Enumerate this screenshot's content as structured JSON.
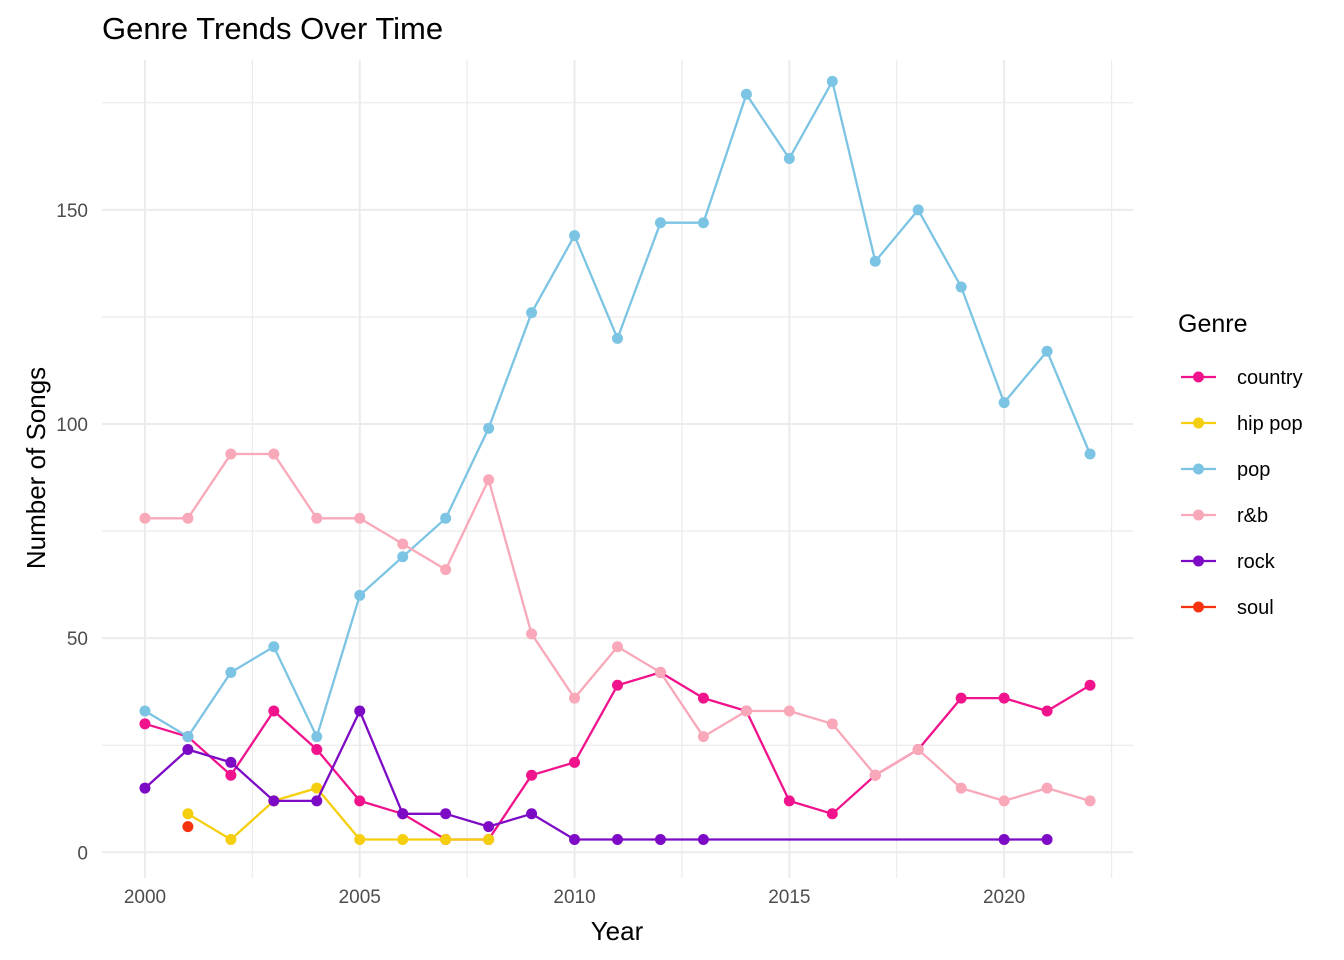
{
  "chart_data": {
    "type": "line",
    "title": "Genre Trends Over Time",
    "xlabel": "Year",
    "ylabel": "Number of Songs",
    "xlim": [
      1999,
      2023
    ],
    "ylim": [
      -6,
      185
    ],
    "x_ticks": [
      2000,
      2005,
      2010,
      2015,
      2020
    ],
    "y_ticks": [
      0,
      50,
      100,
      150
    ],
    "grid": true,
    "legend": {
      "title": "Genre",
      "position": "right"
    },
    "series": [
      {
        "name": "country",
        "color": "#F0138C",
        "points": [
          [
            2000,
            30
          ],
          [
            2001,
            27
          ],
          [
            2002,
            18
          ],
          [
            2003,
            33
          ],
          [
            2004,
            24
          ],
          [
            2005,
            12
          ],
          [
            2006,
            9
          ],
          [
            2007,
            3
          ],
          [
            2008,
            3
          ],
          [
            2009,
            18
          ],
          [
            2010,
            21
          ],
          [
            2011,
            39
          ],
          [
            2012,
            42
          ],
          [
            2013,
            36
          ],
          [
            2014,
            33
          ],
          [
            2015,
            12
          ],
          [
            2016,
            9
          ],
          [
            2017,
            18
          ],
          [
            2018,
            24
          ],
          [
            2019,
            36
          ],
          [
            2020,
            36
          ],
          [
            2021,
            33
          ],
          [
            2022,
            39
          ]
        ]
      },
      {
        "name": "hip pop",
        "color": "#F5CE0E",
        "points": [
          [
            2001,
            9
          ],
          [
            2002,
            3
          ],
          [
            2003,
            12
          ],
          [
            2004,
            15
          ],
          [
            2005,
            3
          ],
          [
            2006,
            3
          ],
          [
            2007,
            3
          ],
          [
            2008,
            3
          ]
        ]
      },
      {
        "name": "pop",
        "color": "#7CC4E3",
        "points": [
          [
            2000,
            33
          ],
          [
            2001,
            27
          ],
          [
            2002,
            42
          ],
          [
            2003,
            48
          ],
          [
            2004,
            27
          ],
          [
            2005,
            60
          ],
          [
            2006,
            69
          ],
          [
            2007,
            78
          ],
          [
            2008,
            99
          ],
          [
            2009,
            126
          ],
          [
            2010,
            144
          ],
          [
            2011,
            120
          ],
          [
            2012,
            147
          ],
          [
            2013,
            147
          ],
          [
            2014,
            177
          ],
          [
            2015,
            162
          ],
          [
            2016,
            180
          ],
          [
            2017,
            138
          ],
          [
            2018,
            150
          ],
          [
            2019,
            132
          ],
          [
            2020,
            105
          ],
          [
            2021,
            117
          ],
          [
            2022,
            93
          ]
        ]
      },
      {
        "name": "r&b",
        "color": "#F8A8B8",
        "points": [
          [
            2000,
            78
          ],
          [
            2001,
            78
          ],
          [
            2002,
            93
          ],
          [
            2003,
            93
          ],
          [
            2004,
            78
          ],
          [
            2005,
            78
          ],
          [
            2006,
            72
          ],
          [
            2007,
            66
          ],
          [
            2008,
            87
          ],
          [
            2009,
            51
          ],
          [
            2010,
            36
          ],
          [
            2011,
            48
          ],
          [
            2012,
            42
          ],
          [
            2013,
            27
          ],
          [
            2014,
            33
          ],
          [
            2015,
            33
          ],
          [
            2016,
            30
          ],
          [
            2017,
            18
          ],
          [
            2018,
            24
          ],
          [
            2019,
            15
          ],
          [
            2020,
            12
          ],
          [
            2021,
            15
          ],
          [
            2022,
            12
          ]
        ]
      },
      {
        "name": "rock",
        "color": "#7D0BC5",
        "points": [
          [
            2000,
            15
          ],
          [
            2001,
            24
          ],
          [
            2002,
            21
          ],
          [
            2003,
            12
          ],
          [
            2004,
            12
          ],
          [
            2005,
            33
          ],
          [
            2006,
            9
          ],
          [
            2007,
            9
          ],
          [
            2008,
            6
          ],
          [
            2009,
            9
          ],
          [
            2010,
            3
          ],
          [
            2011,
            3
          ],
          [
            2012,
            3
          ],
          [
            2013,
            3
          ],
          [
            2020,
            3
          ],
          [
            2021,
            3
          ]
        ]
      },
      {
        "name": "soul",
        "color": "#F5330F",
        "points": [
          [
            2001,
            6
          ]
        ]
      }
    ]
  }
}
